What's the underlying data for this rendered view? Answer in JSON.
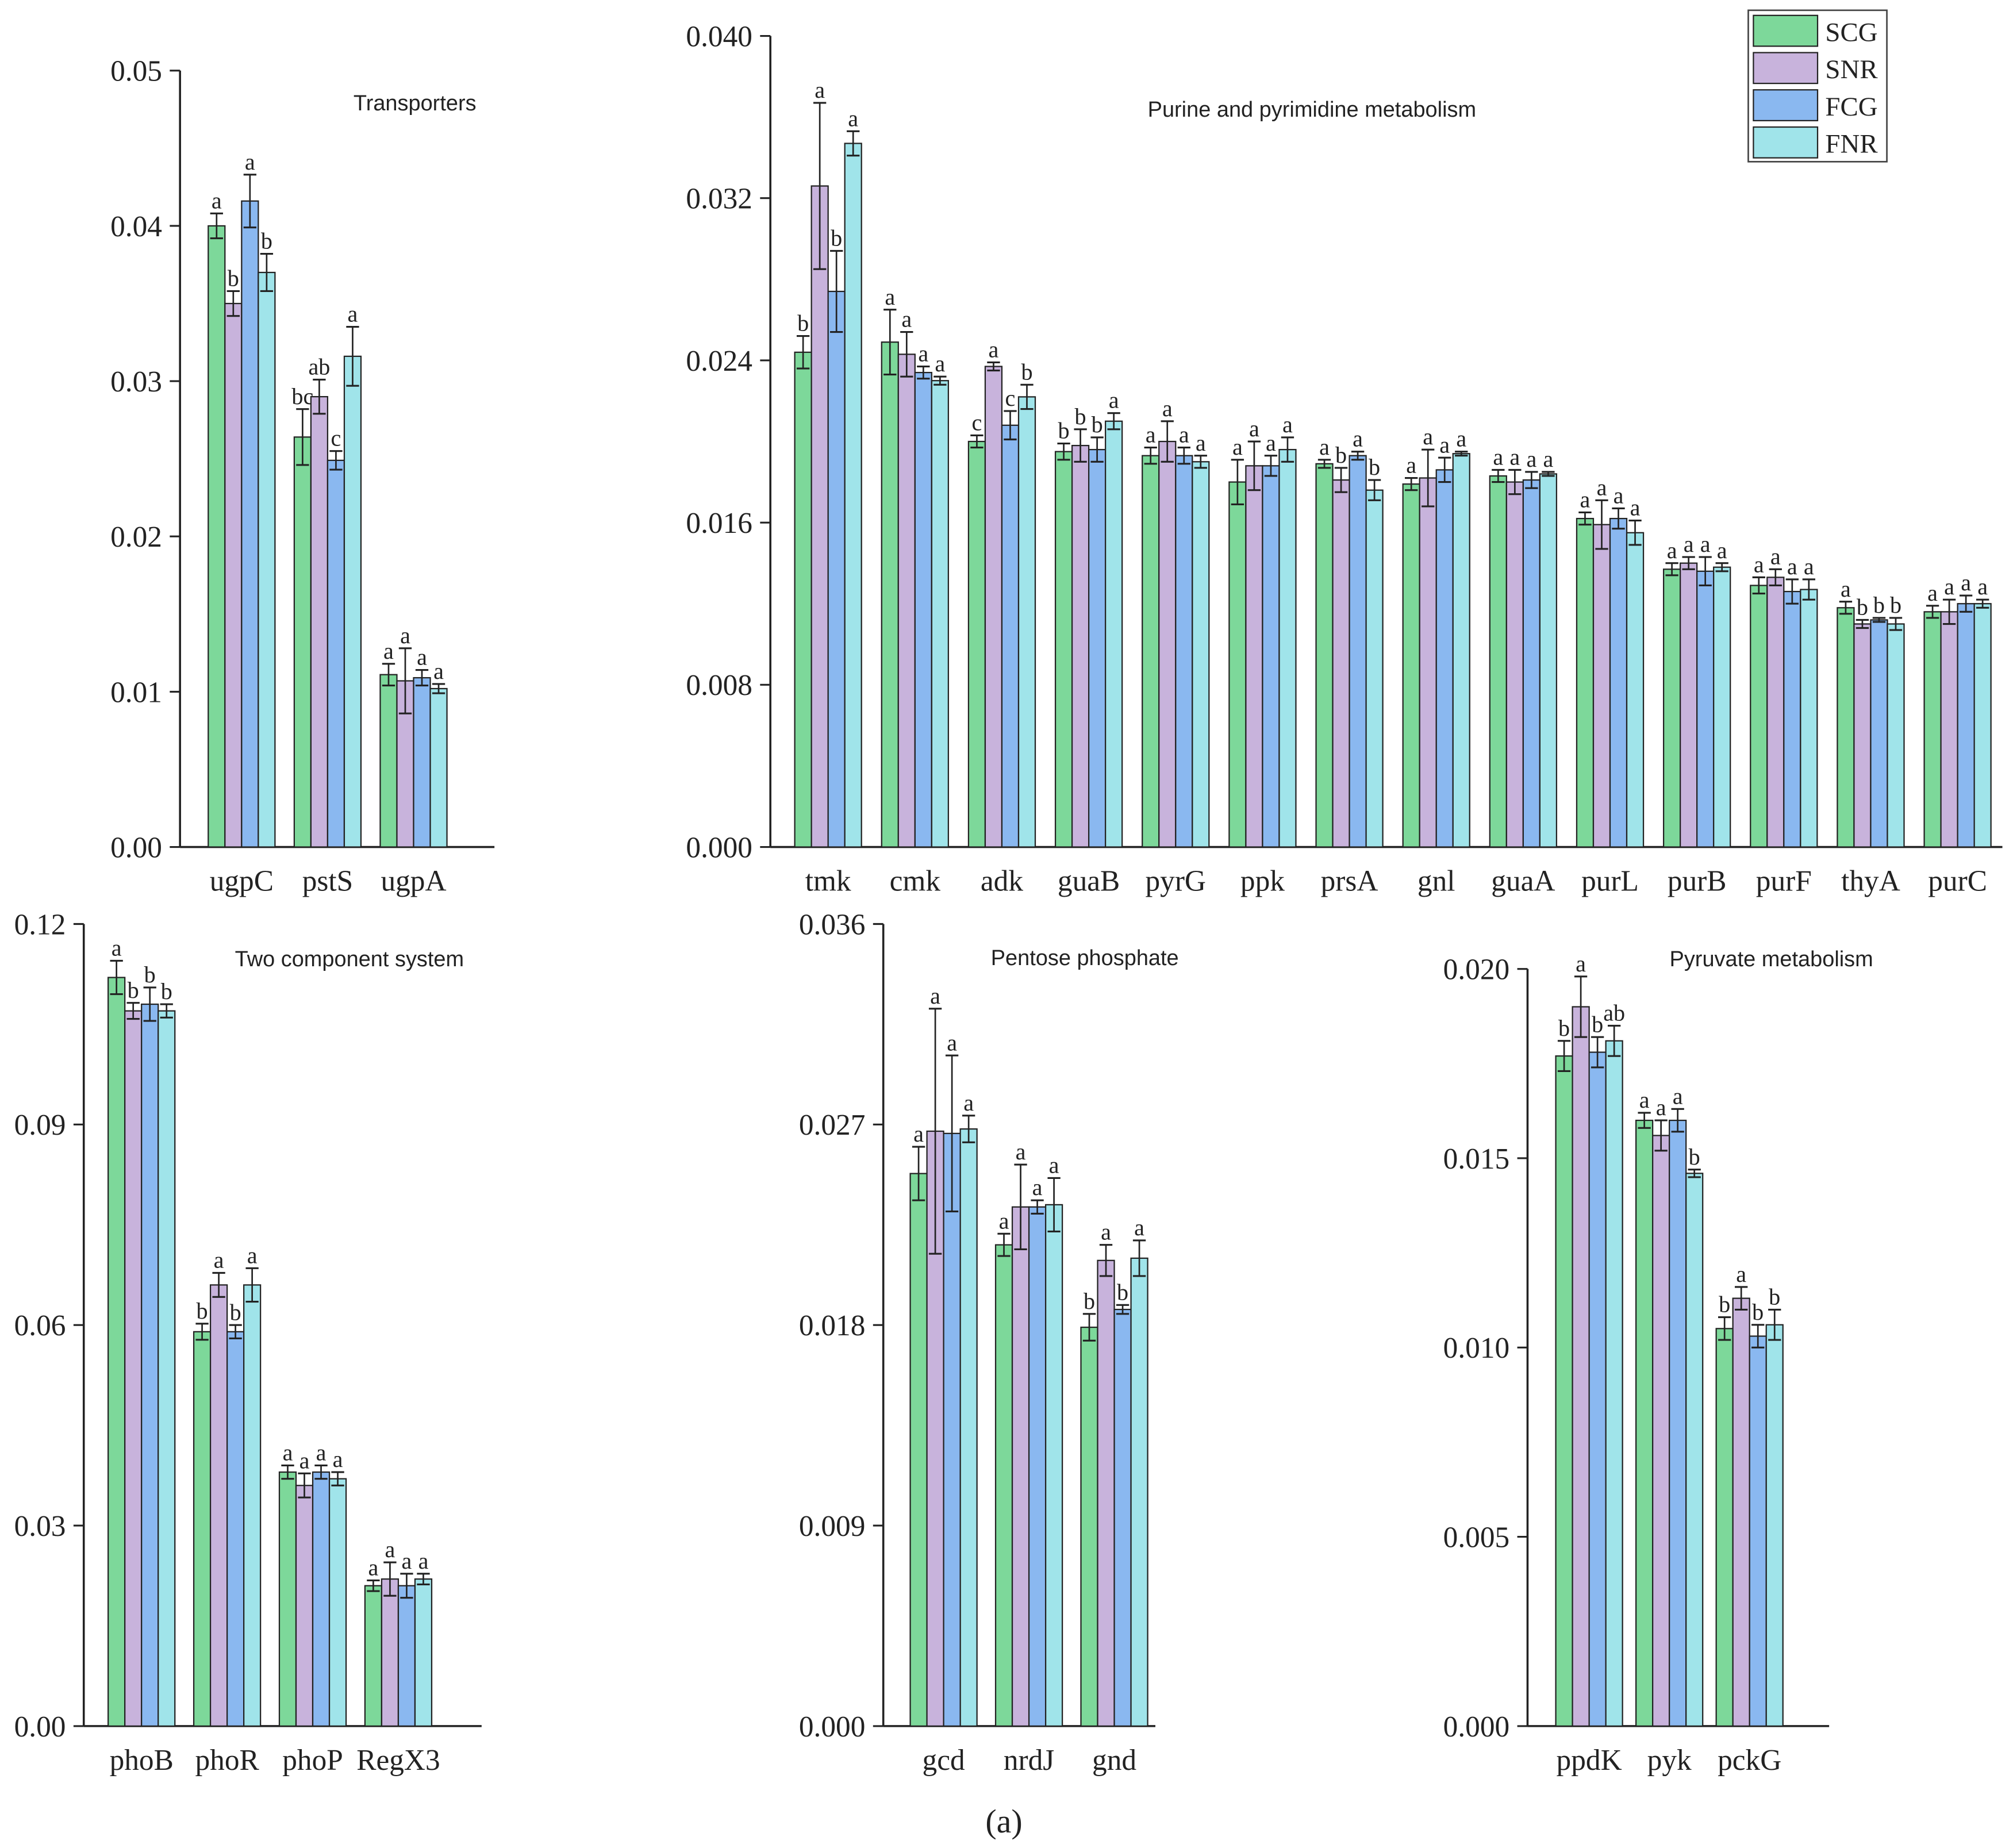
{
  "figure_label": "(a)",
  "legend": [
    {
      "name": "SCG",
      "color": "#7dd89a"
    },
    {
      "name": "SNR",
      "color": "#c8b3dc"
    },
    {
      "name": "FCG",
      "color": "#8ab8f0"
    },
    {
      "name": "FNR",
      "color": "#a0e4ea"
    }
  ],
  "chart_data": [
    {
      "type": "bar",
      "title": "Transporters",
      "ylim": [
        0,
        0.05
      ],
      "yticks": [
        "0.00",
        "0.01",
        "0.02",
        "0.03",
        "0.04",
        "0.05"
      ],
      "categories": [
        "ugpC",
        "pstS",
        "ugpA"
      ],
      "series": [
        {
          "name": "SCG",
          "values": [
            0.04,
            0.0264,
            0.0111
          ],
          "errors": [
            0.0008,
            0.0018,
            0.0007
          ],
          "letters": [
            "a",
            "bc",
            "a"
          ]
        },
        {
          "name": "SNR",
          "values": [
            0.035,
            0.029,
            0.0107
          ],
          "errors": [
            0.0008,
            0.0011,
            0.0021
          ],
          "letters": [
            "b",
            "ab",
            "a"
          ]
        },
        {
          "name": "FCG",
          "values": [
            0.0416,
            0.0249,
            0.0109
          ],
          "errors": [
            0.0017,
            0.0006,
            0.0005
          ],
          "letters": [
            "a",
            "c",
            "a"
          ]
        },
        {
          "name": "FNR",
          "values": [
            0.037,
            0.0316,
            0.0102
          ],
          "errors": [
            0.0012,
            0.0019,
            0.0003
          ],
          "letters": [
            "b",
            "a",
            "a"
          ]
        }
      ]
    },
    {
      "type": "bar",
      "title": "Purine and pyrimidine metabolism",
      "ylim": [
        0,
        0.04
      ],
      "yticks": [
        "0.000",
        "0.008",
        "0.016",
        "0.024",
        "0.032",
        "0.040"
      ],
      "categories": [
        "tmk",
        "cmk",
        "adk",
        "guaB",
        "pyrG",
        "ppk",
        "prsA",
        "gnl",
        "guaA",
        "purL",
        "purB",
        "purF",
        "thyA",
        "purC"
      ],
      "series": [
        {
          "name": "SCG",
          "values": [
            0.0244,
            0.0249,
            0.02,
            0.0195,
            0.0193,
            0.018,
            0.0189,
            0.0179,
            0.0183,
            0.0162,
            0.0137,
            0.0129,
            0.0118,
            0.0116
          ],
          "errors": [
            0.0008,
            0.0016,
            0.0003,
            0.0004,
            0.0004,
            0.0011,
            0.0002,
            0.0003,
            0.0003,
            0.0003,
            0.0003,
            0.0004,
            0.0003,
            0.0003
          ],
          "letters": [
            "b",
            "a",
            "c",
            "b",
            "a",
            "a",
            "a",
            "a",
            "a",
            "a",
            "a",
            "a",
            "a",
            "a"
          ]
        },
        {
          "name": "SNR",
          "values": [
            0.0326,
            0.0243,
            0.0237,
            0.0198,
            0.02,
            0.0188,
            0.0181,
            0.0182,
            0.018,
            0.0159,
            0.014,
            0.0133,
            0.011,
            0.0116
          ],
          "errors": [
            0.0041,
            0.0011,
            0.0002,
            0.0008,
            0.001,
            0.0012,
            0.0006,
            0.0014,
            0.0006,
            0.0012,
            0.0003,
            0.0004,
            0.0002,
            0.0006
          ],
          "letters": [
            "a",
            "a",
            "a",
            "b",
            "a",
            "a",
            "b",
            "a",
            "a",
            "a",
            "a",
            "a",
            "b",
            "a"
          ]
        },
        {
          "name": "FCG",
          "values": [
            0.0274,
            0.0234,
            0.0208,
            0.0196,
            0.0193,
            0.0188,
            0.0193,
            0.0186,
            0.0181,
            0.0162,
            0.0136,
            0.0126,
            0.0112,
            0.012
          ],
          "errors": [
            0.002,
            0.0003,
            0.0007,
            0.0006,
            0.0004,
            0.0005,
            0.0002,
            0.0006,
            0.0004,
            0.0005,
            0.0007,
            0.0006,
            0.0001,
            0.0004
          ],
          "letters": [
            "b",
            "a",
            "c",
            "b",
            "a",
            "a",
            "a",
            "a",
            "a",
            "a",
            "a",
            "a",
            "b",
            "a"
          ]
        },
        {
          "name": "FNR",
          "values": [
            0.0347,
            0.023,
            0.0222,
            0.021,
            0.019,
            0.0196,
            0.0176,
            0.0194,
            0.0184,
            0.0155,
            0.0138,
            0.0127,
            0.011,
            0.012
          ],
          "errors": [
            0.0006,
            0.0002,
            0.0006,
            0.0004,
            0.0003,
            0.0006,
            0.0005,
            0.0001,
            0.0001,
            0.0006,
            0.0002,
            0.0005,
            0.0003,
            0.0002
          ],
          "letters": [
            "a",
            "a",
            "b",
            "a",
            "a",
            "a",
            "b",
            "a",
            "a",
            "a",
            "a",
            "a",
            "b",
            "a"
          ]
        }
      ]
    },
    {
      "type": "bar",
      "title": "Two component system",
      "ylim": [
        0,
        0.12
      ],
      "yticks": [
        "0.00",
        "0.03",
        "0.06",
        "0.09",
        "0.12"
      ],
      "categories": [
        "phoB",
        "phoR",
        "phoP",
        "RegX3"
      ],
      "series": [
        {
          "name": "SCG",
          "values": [
            0.112,
            0.059,
            0.038,
            0.021
          ],
          "errors": [
            0.0025,
            0.0012,
            0.001,
            0.0008
          ],
          "letters": [
            "a",
            "b",
            "a",
            "a"
          ]
        },
        {
          "name": "SNR",
          "values": [
            0.107,
            0.066,
            0.036,
            0.022
          ],
          "errors": [
            0.0012,
            0.0018,
            0.0018,
            0.0025
          ],
          "letters": [
            "b",
            "a",
            "a",
            "a"
          ]
        },
        {
          "name": "FCG",
          "values": [
            0.108,
            0.059,
            0.038,
            0.021
          ],
          "errors": [
            0.0025,
            0.001,
            0.001,
            0.0018
          ],
          "letters": [
            "b",
            "b",
            "a",
            "a"
          ]
        },
        {
          "name": "FNR",
          "values": [
            0.107,
            0.066,
            0.037,
            0.022
          ],
          "errors": [
            0.001,
            0.0025,
            0.001,
            0.0008
          ],
          "letters": [
            "b",
            "a",
            "a",
            "a"
          ]
        }
      ]
    },
    {
      "type": "bar",
      "title": "Pentose phosphate",
      "ylim": [
        0,
        0.036
      ],
      "yticks": [
        "0.000",
        "0.009",
        "0.018",
        "0.027",
        "0.036"
      ],
      "categories": [
        "gcd",
        "nrdJ",
        "gnd"
      ],
      "series": [
        {
          "name": "SCG",
          "values": [
            0.0248,
            0.0216,
            0.0179
          ],
          "errors": [
            0.0012,
            0.0005,
            0.0006
          ],
          "letters": [
            "a",
            "a",
            "b"
          ]
        },
        {
          "name": "SNR",
          "values": [
            0.0267,
            0.0233,
            0.0209
          ],
          "errors": [
            0.0055,
            0.0019,
            0.0007
          ],
          "letters": [
            "a",
            "a",
            "a"
          ]
        },
        {
          "name": "FCG",
          "values": [
            0.0266,
            0.0233,
            0.0187
          ],
          "errors": [
            0.0035,
            0.0003,
            0.0002
          ],
          "letters": [
            "a",
            "a",
            "b"
          ]
        },
        {
          "name": "FNR",
          "values": [
            0.0268,
            0.0234,
            0.021
          ],
          "errors": [
            0.0006,
            0.0012,
            0.0008
          ],
          "letters": [
            "a",
            "a",
            "a"
          ]
        }
      ]
    },
    {
      "type": "bar",
      "title": "Pyruvate metabolism",
      "ylim": [
        0,
        0.02
      ],
      "yticks": [
        "0.000",
        "0.005",
        "0.010",
        "0.015",
        "0.020"
      ],
      "categories": [
        "ppdK",
        "pyk",
        "pckG"
      ],
      "series": [
        {
          "name": "SCG",
          "values": [
            0.0177,
            0.016,
            0.0105
          ],
          "errors": [
            0.0004,
            0.0002,
            0.0003
          ],
          "letters": [
            "b",
            "a",
            "b"
          ]
        },
        {
          "name": "SNR",
          "values": [
            0.019,
            0.0156,
            0.0113
          ],
          "errors": [
            0.0008,
            0.0004,
            0.0003
          ],
          "letters": [
            "a",
            "a",
            "a"
          ]
        },
        {
          "name": "FCG",
          "values": [
            0.0178,
            0.016,
            0.0103
          ],
          "errors": [
            0.0004,
            0.0003,
            0.0003
          ],
          "letters": [
            "b",
            "a",
            "b"
          ]
        },
        {
          "name": "FNR",
          "values": [
            0.0181,
            0.0146,
            0.0106
          ],
          "errors": [
            0.0004,
            0.0001,
            0.0004
          ],
          "letters": [
            "ab",
            "b",
            "b"
          ]
        }
      ]
    }
  ]
}
